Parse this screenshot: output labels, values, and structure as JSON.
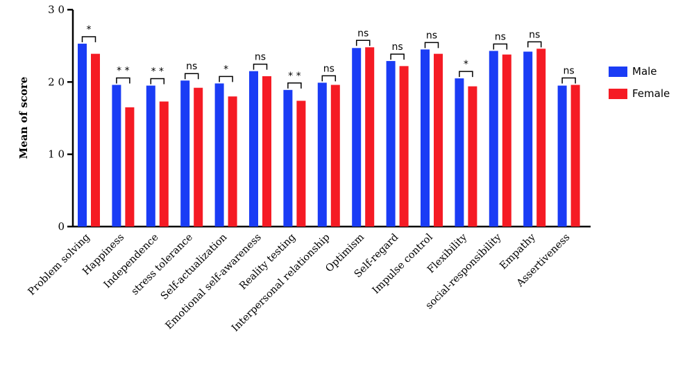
{
  "chart_data": {
    "type": "bar",
    "ylabel": "Mean of score",
    "ylim": [
      0,
      30
    ],
    "yticks": [
      {
        "value": 0,
        "label": "0"
      },
      {
        "value": 10,
        "label": "1 0"
      },
      {
        "value": 20,
        "label": "2 0"
      },
      {
        "value": 30,
        "label": "3 0"
      }
    ],
    "categories": [
      "Problem solving",
      "Happiness",
      "Independence",
      "stress tolerance",
      "Self-actualization",
      "Emotional self-awareness",
      "Reality testing",
      "Interpersonal relationship",
      "Optimism",
      "Self-regard",
      "Impulse control",
      "Flexibility",
      "social-responsibility",
      "Empathy",
      "Assertiveness"
    ],
    "series": [
      {
        "name": "Male",
        "color": "#1a3cf5",
        "values": [
          25.3,
          19.6,
          19.5,
          20.2,
          19.8,
          21.5,
          18.9,
          19.9,
          24.7,
          22.9,
          24.5,
          20.5,
          24.3,
          24.2,
          19.5
        ]
      },
      {
        "name": "Female",
        "color": "#f51b24",
        "values": [
          23.9,
          16.5,
          17.3,
          19.2,
          18.0,
          20.8,
          17.4,
          19.6,
          24.8,
          22.2,
          23.9,
          19.4,
          23.8,
          24.6,
          19.6
        ]
      }
    ],
    "significance": [
      "*",
      "* *",
      "* *",
      "ns",
      "*",
      "ns",
      "* *",
      "ns",
      "ns",
      "ns",
      "ns",
      "*",
      "ns",
      "ns",
      "ns"
    ],
    "legend_position": "right",
    "grid": false
  }
}
